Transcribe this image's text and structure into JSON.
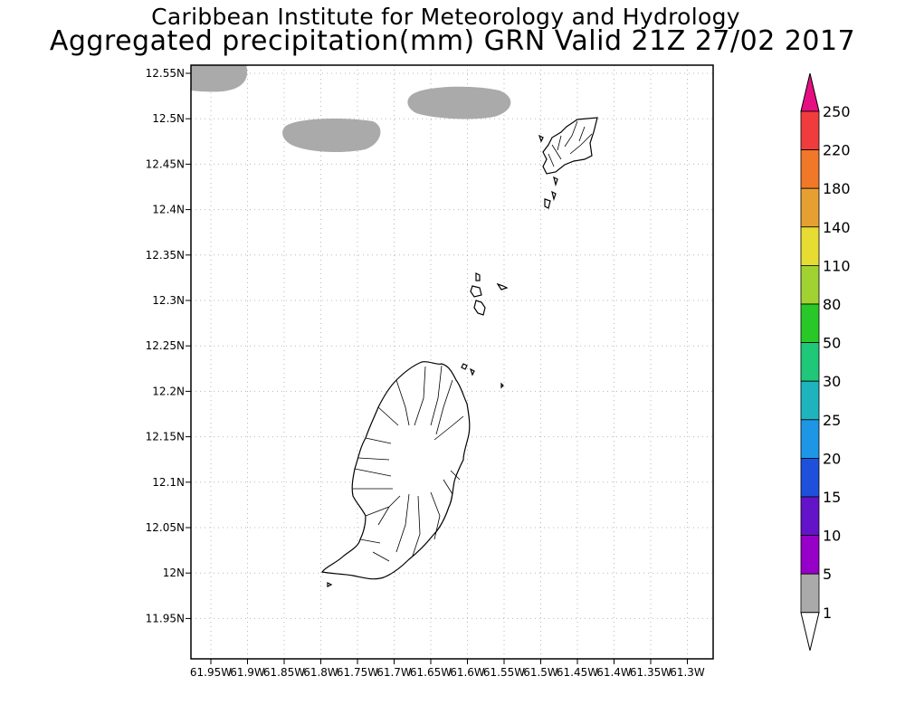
{
  "titles": {
    "line1": "Caribbean Institute for Meteorology and Hydrology",
    "line2": "Aggregated precipitation(mm) GRN Valid 21Z 27/02 2017"
  },
  "axes": {
    "lat_ticks": [
      "12.55N",
      "12.5N",
      "12.45N",
      "12.4N",
      "12.35N",
      "12.3N",
      "12.25N",
      "12.2N",
      "12.15N",
      "12.1N",
      "12.05N",
      "12N",
      "11.95N"
    ],
    "lon_ticks": [
      "61.95W",
      "61.9W",
      "61.85W",
      "61.8W",
      "61.75W",
      "61.7W",
      "61.65W",
      "61.6W",
      "61.55W",
      "61.5W",
      "61.45W",
      "61.4W",
      "61.35W",
      "61.3W"
    ]
  },
  "colorbar": {
    "labels": [
      "250",
      "220",
      "180",
      "140",
      "110",
      "80",
      "50",
      "30",
      "25",
      "20",
      "15",
      "10",
      "5",
      "1"
    ],
    "colors": [
      "#e60f82",
      "#f03c3c",
      "#f07828",
      "#e6a032",
      "#e6dc32",
      "#a0d232",
      "#28c828",
      "#1ec878",
      "#1eb4be",
      "#1e96e6",
      "#1e50dc",
      "#6414c8",
      "#9600c8",
      "#aaaaaa",
      "#ffffff"
    ]
  },
  "precip_shade_color": "#aaaaaa",
  "map_features": [
    "Grenada",
    "Carriacou",
    "Petite Martinique",
    "Grenadines islets"
  ]
}
